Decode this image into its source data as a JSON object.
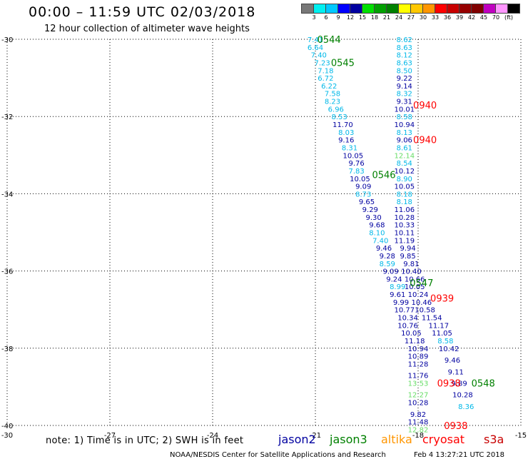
{
  "title": "00:00 – 11:59 UTC 02/03/2018",
  "subtitle": "12 hour collection of altimeter wave heights",
  "color_scale": {
    "colors": [
      "#787878",
      "#00f0f0",
      "#00c8ff",
      "#0000ff",
      "#0000a0",
      "#00e000",
      "#00a000",
      "#008000",
      "#ffff00",
      "#ffc800",
      "#ff9600",
      "#ff0000",
      "#c80000",
      "#960000",
      "#800000",
      "#c000c0",
      "#ff96ff",
      "#000000"
    ],
    "labels": [
      "3",
      "6",
      "9",
      "12",
      "15",
      "18",
      "21",
      "24",
      "27",
      "30",
      "33",
      "36",
      "39",
      "42",
      "45",
      "70"
    ],
    "unit": "(ft)"
  },
  "axes": {
    "x_ticks": [
      "-30",
      "-27",
      "-24",
      "-21",
      "-18",
      "-15"
    ],
    "y_ticks": [
      "-30",
      "-32",
      "-34",
      "-36",
      "-38",
      "-40"
    ],
    "lon_range": [
      -30,
      -15
    ],
    "lat_range": [
      -40,
      -30
    ]
  },
  "colors": {
    "jason2": "#0000a0",
    "jason3": "#008000",
    "altika": "#ff9600",
    "cryosat": "#ff0000",
    "s3a": "#c80000",
    "light": "#00b8e8",
    "lightgreen": "#66dd66"
  },
  "track1": {
    "labels": [
      {
        "v": "7.41",
        "c": "light",
        "lat": -30.0,
        "lon": -21.0
      },
      {
        "v": "6.64",
        "c": "light",
        "lat": -30.2,
        "lon": -21.0
      },
      {
        "v": "7.40",
        "c": "light",
        "lat": -30.4,
        "lon": -20.9
      },
      {
        "v": "7.23",
        "c": "light",
        "lat": -30.6,
        "lon": -20.8
      },
      {
        "v": "7.18",
        "c": "light",
        "lat": -30.8,
        "lon": -20.7
      },
      {
        "v": "6.72",
        "c": "light",
        "lat": -31.0,
        "lon": -20.7
      },
      {
        "v": "6.22",
        "c": "light",
        "lat": -31.2,
        "lon": -20.6
      },
      {
        "v": "7.58",
        "c": "light",
        "lat": -31.4,
        "lon": -20.5
      },
      {
        "v": "8.23",
        "c": "light",
        "lat": -31.6,
        "lon": -20.5
      },
      {
        "v": "6.96",
        "c": "light",
        "lat": -31.8,
        "lon": -20.4
      },
      {
        "v": "8.53",
        "c": "light",
        "lat": -32.0,
        "lon": -20.3
      },
      {
        "v": "11.70",
        "c": "jason2",
        "lat": -32.2,
        "lon": -20.2
      },
      {
        "v": "8.03",
        "c": "light",
        "lat": -32.4,
        "lon": -20.1
      },
      {
        "v": "9.16",
        "c": "jason2",
        "lat": -32.6,
        "lon": -20.1
      },
      {
        "v": "8.31",
        "c": "light",
        "lat": -32.8,
        "lon": -20.0
      },
      {
        "v": "10.05",
        "c": "jason2",
        "lat": -33.0,
        "lon": -19.9
      },
      {
        "v": "9.76",
        "c": "jason2",
        "lat": -33.2,
        "lon": -19.8
      },
      {
        "v": "7.83",
        "c": "light",
        "lat": -33.4,
        "lon": -19.8
      },
      {
        "v": "10.05",
        "c": "jason2",
        "lat": -33.6,
        "lon": -19.7
      },
      {
        "v": "9.09",
        "c": "jason2",
        "lat": -33.8,
        "lon": -19.6
      },
      {
        "v": "8.73",
        "c": "light",
        "lat": -34.0,
        "lon": -19.6
      },
      {
        "v": "9.65",
        "c": "jason2",
        "lat": -34.2,
        "lon": -19.5
      },
      {
        "v": "9.29",
        "c": "jason2",
        "lat": -34.4,
        "lon": -19.4
      },
      {
        "v": "9.30",
        "c": "jason2",
        "lat": -34.6,
        "lon": -19.3
      },
      {
        "v": "9.68",
        "c": "jason2",
        "lat": -34.8,
        "lon": -19.2
      },
      {
        "v": "8.10",
        "c": "light",
        "lat": -35.0,
        "lon": -19.2
      },
      {
        "v": "7.40",
        "c": "light",
        "lat": -35.2,
        "lon": -19.1
      },
      {
        "v": "9.46",
        "c": "jason2",
        "lat": -35.4,
        "lon": -19.0
      },
      {
        "v": "9.28",
        "c": "jason2",
        "lat": -35.6,
        "lon": -18.9
      },
      {
        "v": "8.59",
        "c": "light",
        "lat": -35.8,
        "lon": -18.9
      },
      {
        "v": "9.09",
        "c": "jason2",
        "lat": -36.0,
        "lon": -18.8
      },
      {
        "v": "9.24",
        "c": "jason2",
        "lat": -36.2,
        "lon": -18.7
      },
      {
        "v": "8.99",
        "c": "light",
        "lat": -36.4,
        "lon": -18.6
      },
      {
        "v": "9.61",
        "c": "jason2",
        "lat": -36.6,
        "lon": -18.6
      },
      {
        "v": "9.99",
        "c": "jason2",
        "lat": -36.8,
        "lon": -18.5
      },
      {
        "v": "10.77",
        "c": "jason2",
        "lat": -37.0,
        "lon": -18.4
      },
      {
        "v": "10.34",
        "c": "jason2",
        "lat": -37.2,
        "lon": -18.3
      },
      {
        "v": "10.76",
        "c": "jason2",
        "lat": -37.4,
        "lon": -18.3
      },
      {
        "v": "10.05",
        "c": "jason2",
        "lat": -37.6,
        "lon": -18.2
      },
      {
        "v": "11.18",
        "c": "jason2",
        "lat": -37.8,
        "lon": -18.1
      },
      {
        "v": "10.94",
        "c": "jason2",
        "lat": -38.0,
        "lon": -18.0
      },
      {
        "v": "10.89",
        "c": "jason2",
        "lat": -38.2,
        "lon": -18.0
      },
      {
        "v": "11.28",
        "c": "jason2",
        "lat": -38.4,
        "lon": -18.0
      },
      {
        "v": "11.76",
        "c": "jason2",
        "lat": -38.7,
        "lon": -18.0
      },
      {
        "v": "13.53",
        "c": "lightgreen",
        "lat": -38.9,
        "lon": -18.0
      },
      {
        "v": "12.27",
        "c": "lightgreen",
        "lat": -39.2,
        "lon": -18.0
      },
      {
        "v": "10.28",
        "c": "jason2",
        "lat": -39.4,
        "lon": -18.0
      },
      {
        "v": "9.82",
        "c": "jason2",
        "lat": -39.7,
        "lon": -18.0
      },
      {
        "v": "11.48",
        "c": "jason2",
        "lat": -39.9,
        "lon": -18.0
      },
      {
        "v": "12.82",
        "c": "lightgreen",
        "lat": -40.1,
        "lon": -18.0
      }
    ]
  },
  "track2": {
    "labels": [
      {
        "v": "8.62",
        "c": "light",
        "lat": -30.0,
        "lon": -18.4
      },
      {
        "v": "8.63",
        "c": "light",
        "lat": -30.2,
        "lon": -18.4
      },
      {
        "v": "8.12",
        "c": "light",
        "lat": -30.4,
        "lon": -18.4
      },
      {
        "v": "8.63",
        "c": "light",
        "lat": -30.6,
        "lon": -18.4
      },
      {
        "v": "8.50",
        "c": "light",
        "lat": -30.8,
        "lon": -18.4
      },
      {
        "v": "9.22",
        "c": "jason2",
        "lat": -31.0,
        "lon": -18.4
      },
      {
        "v": "9.14",
        "c": "jason2",
        "lat": -31.2,
        "lon": -18.4
      },
      {
        "v": "8.32",
        "c": "light",
        "lat": -31.4,
        "lon": -18.4
      },
      {
        "v": "9.31",
        "c": "jason2",
        "lat": -31.6,
        "lon": -18.4
      },
      {
        "v": "10.01",
        "c": "jason2",
        "lat": -31.8,
        "lon": -18.4
      },
      {
        "v": "8.58",
        "c": "light",
        "lat": -32.0,
        "lon": -18.4
      },
      {
        "v": "10.94",
        "c": "jason2",
        "lat": -32.2,
        "lon": -18.4
      },
      {
        "v": "8.13",
        "c": "light",
        "lat": -32.4,
        "lon": -18.4
      },
      {
        "v": "9.06",
        "c": "jason2",
        "lat": -32.6,
        "lon": -18.4
      },
      {
        "v": "8.61",
        "c": "light",
        "lat": -32.8,
        "lon": -18.4
      },
      {
        "v": "12.14",
        "c": "lightgreen",
        "lat": -33.0,
        "lon": -18.4
      },
      {
        "v": "8.54",
        "c": "light",
        "lat": -33.2,
        "lon": -18.4
      },
      {
        "v": "10.12",
        "c": "jason2",
        "lat": -33.4,
        "lon": -18.4
      },
      {
        "v": "8.90",
        "c": "light",
        "lat": -33.6,
        "lon": -18.4
      },
      {
        "v": "10.05",
        "c": "jason2",
        "lat": -33.8,
        "lon": -18.4
      },
      {
        "v": "8.18",
        "c": "light",
        "lat": -34.0,
        "lon": -18.4
      },
      {
        "v": "8.18",
        "c": "light",
        "lat": -34.2,
        "lon": -18.4
      },
      {
        "v": "11.06",
        "c": "jason2",
        "lat": -34.4,
        "lon": -18.4
      },
      {
        "v": "10.28",
        "c": "jason2",
        "lat": -34.6,
        "lon": -18.4
      },
      {
        "v": "10.33",
        "c": "jason2",
        "lat": -34.8,
        "lon": -18.4
      },
      {
        "v": "10.11",
        "c": "jason2",
        "lat": -35.0,
        "lon": -18.4
      },
      {
        "v": "11.19",
        "c": "jason2",
        "lat": -35.2,
        "lon": -18.4
      },
      {
        "v": "9.94",
        "c": "jason2",
        "lat": -35.4,
        "lon": -18.3
      },
      {
        "v": "9.85",
        "c": "jason2",
        "lat": -35.6,
        "lon": -18.3
      },
      {
        "v": "9.81",
        "c": "jason2",
        "lat": -35.8,
        "lon": -18.2
      },
      {
        "v": "10.40",
        "c": "jason2",
        "lat": -36.0,
        "lon": -18.2
      },
      {
        "v": "10.66",
        "c": "jason2",
        "lat": -36.2,
        "lon": -18.1
      },
      {
        "v": "10.05",
        "c": "jason2",
        "lat": -36.4,
        "lon": -18.1
      },
      {
        "v": "10.24",
        "c": "jason2",
        "lat": -36.6,
        "lon": -18.0
      },
      {
        "v": "10.46",
        "c": "jason2",
        "lat": -36.8,
        "lon": -17.9
      },
      {
        "v": "10.58",
        "c": "jason2",
        "lat": -37.0,
        "lon": -17.8
      },
      {
        "v": "11.54",
        "c": "jason2",
        "lat": -37.2,
        "lon": -17.6
      },
      {
        "v": "11.17",
        "c": "jason2",
        "lat": -37.4,
        "lon": -17.4
      },
      {
        "v": "11.05",
        "c": "jason2",
        "lat": -37.6,
        "lon": -17.3
      },
      {
        "v": "8.58",
        "c": "light",
        "lat": -37.8,
        "lon": -17.2
      },
      {
        "v": "10.42",
        "c": "jason2",
        "lat": -38.0,
        "lon": -17.1
      },
      {
        "v": "9.46",
        "c": "jason2",
        "lat": -38.3,
        "lon": -17.0
      },
      {
        "v": "9.11",
        "c": "jason2",
        "lat": -38.6,
        "lon": -16.9
      },
      {
        "v": "9.89",
        "c": "jason2",
        "lat": -38.9,
        "lon": -16.8
      },
      {
        "v": "10.28",
        "c": "jason2",
        "lat": -39.2,
        "lon": -16.7
      },
      {
        "v": "8.36",
        "c": "light",
        "lat": -39.5,
        "lon": -16.6
      }
    ]
  },
  "time_tags": [
    {
      "t": "0544",
      "c": "jason3",
      "lat": -30.0,
      "lon": -20.6
    },
    {
      "t": "0545",
      "c": "jason3",
      "lat": -30.6,
      "lon": -20.2
    },
    {
      "t": "0546",
      "c": "jason3",
      "lat": -33.5,
      "lon": -19.0
    },
    {
      "t": "0547",
      "c": "jason3",
      "lat": -36.3,
      "lon": -17.9
    },
    {
      "t": "0548",
      "c": "jason3",
      "lat": -38.9,
      "lon": -16.1
    },
    {
      "t": "0940",
      "c": "cryosat",
      "lat": -31.7,
      "lon": -17.8
    },
    {
      "t": "0940",
      "c": "cryosat",
      "lat": -32.6,
      "lon": -17.8
    },
    {
      "t": "0939",
      "c": "cryosat",
      "lat": -36.7,
      "lon": -17.3
    },
    {
      "t": "0938",
      "c": "cryosat",
      "lat": -38.9,
      "lon": -17.1
    },
    {
      "t": "0938",
      "c": "cryosat",
      "lat": -40.0,
      "lon": -16.9
    }
  ],
  "note": "note:  1) Time is in UTC;  2) SWH is in feet",
  "legend": [
    {
      "name": "jason2",
      "color": "#0000a0"
    },
    {
      "name": "jason3",
      "color": "#008000"
    },
    {
      "name": "altika",
      "color": "#ff9600"
    },
    {
      "name": "cryosat",
      "color": "#ff0000"
    },
    {
      "name": "s3a",
      "color": "#c80000"
    }
  ],
  "footer_left": "NOAA/NESDIS Center for Satellite Applications and Research",
  "footer_right": "Feb  4 13:27:21 UTC 2018"
}
